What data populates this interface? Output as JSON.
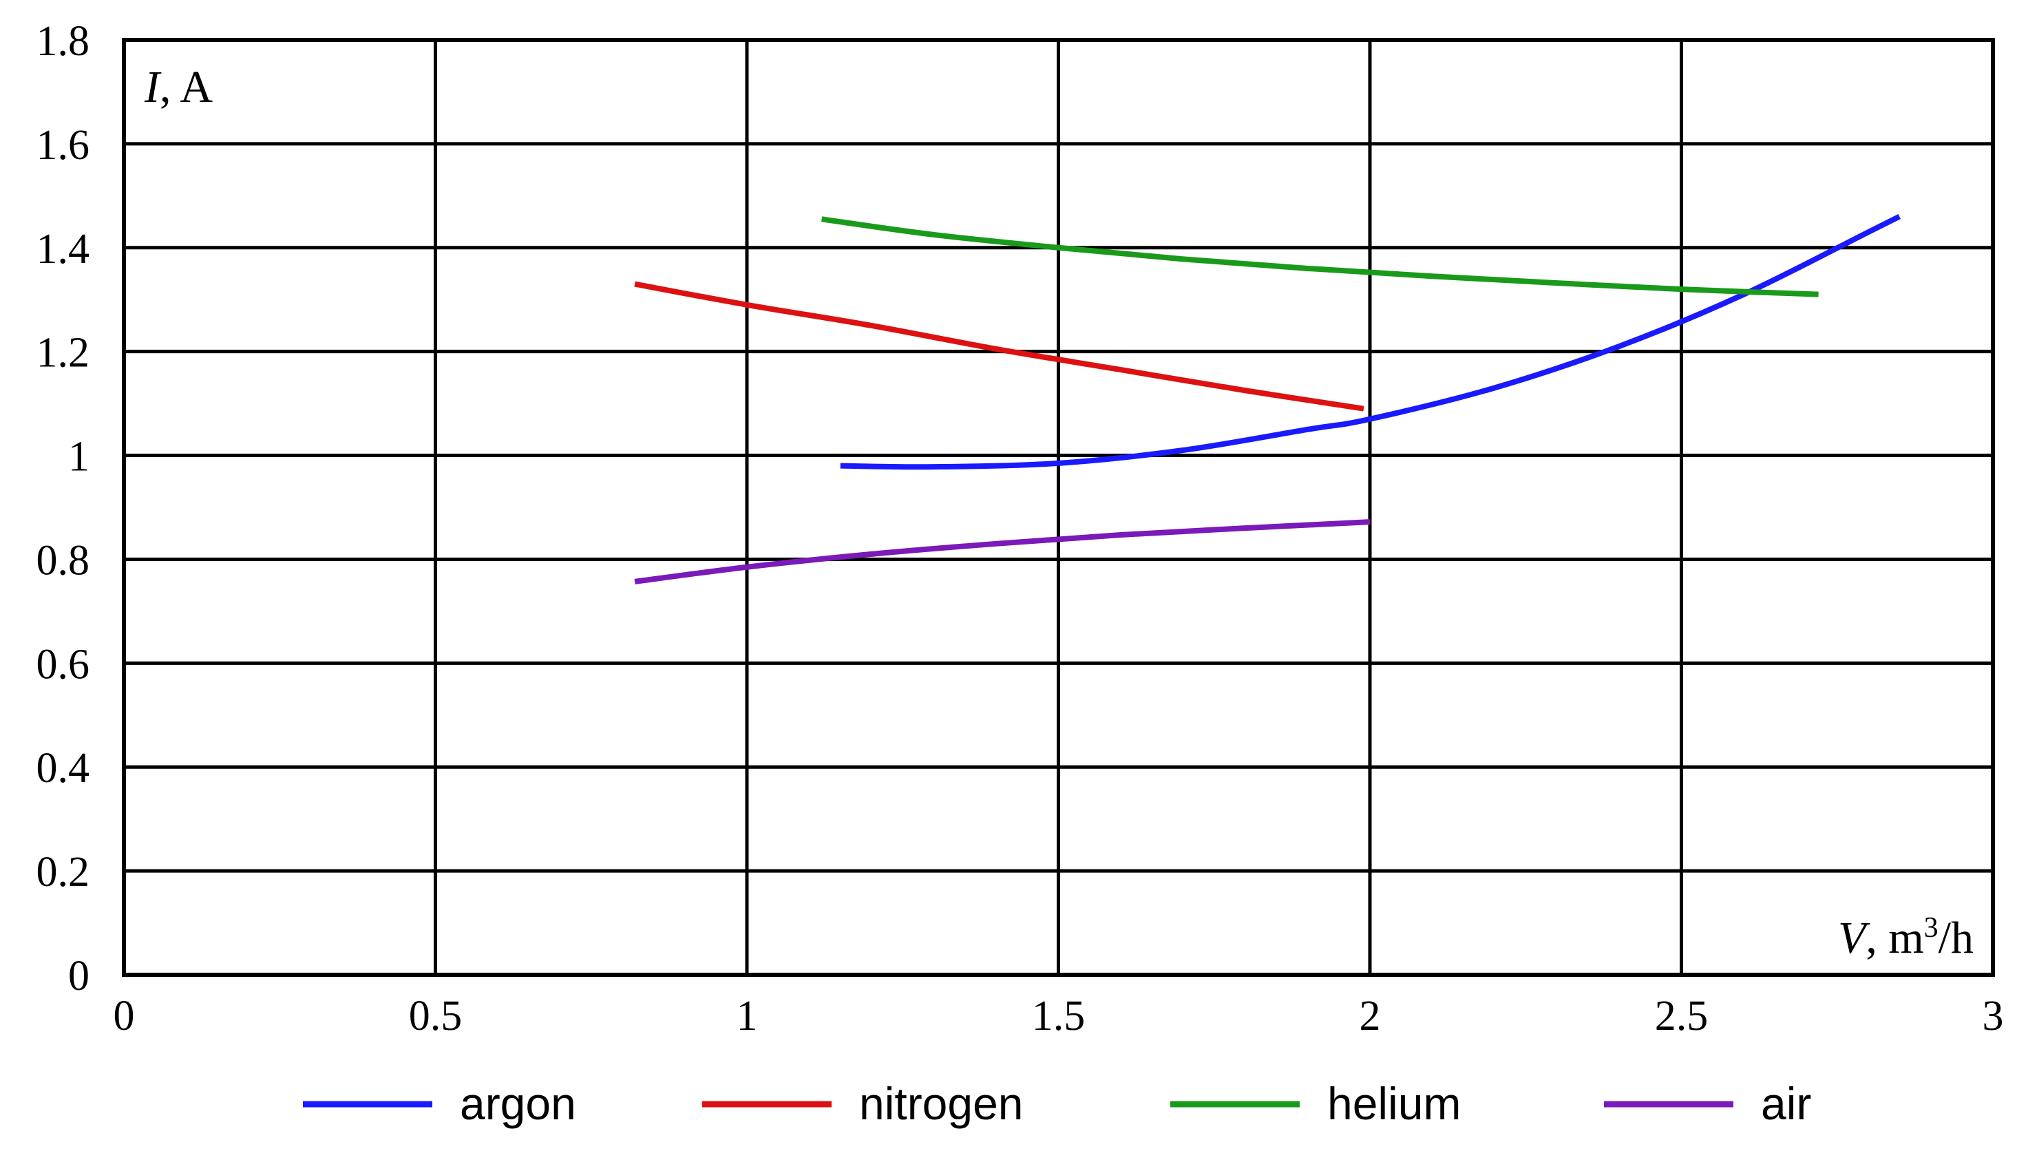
{
  "chart_data": {
    "type": "line",
    "title": "",
    "ylabel": {
      "var": "I",
      "rest": ", A"
    },
    "xlabel": {
      "var": "V",
      "rest1": ", m",
      "sup": "3",
      "rest2": "/h"
    },
    "xlim": [
      0,
      3
    ],
    "ylim": [
      0,
      1.8
    ],
    "xticks": [
      {
        "v": 0,
        "label": "0"
      },
      {
        "v": 0.5,
        "label": "0.5"
      },
      {
        "v": 1,
        "label": "1"
      },
      {
        "v": 1.5,
        "label": "1.5"
      },
      {
        "v": 2,
        "label": "2"
      },
      {
        "v": 2.5,
        "label": "2.5"
      },
      {
        "v": 3,
        "label": "3"
      }
    ],
    "yticks": [
      {
        "v": 0,
        "label": "0"
      },
      {
        "v": 0.2,
        "label": "0.2"
      },
      {
        "v": 0.4,
        "label": "0.4"
      },
      {
        "v": 0.6,
        "label": "0.6"
      },
      {
        "v": 0.8,
        "label": "0.8"
      },
      {
        "v": 1.0,
        "label": "1"
      },
      {
        "v": 1.2,
        "label": "1.2"
      },
      {
        "v": 1.4,
        "label": "1.4"
      },
      {
        "v": 1.6,
        "label": "1.6"
      },
      {
        "v": 1.8,
        "label": "1.8"
      }
    ],
    "grid": true,
    "legend_position": "bottom",
    "series": [
      {
        "name": "argon",
        "color": "#1a1aff",
        "x": [
          1.15,
          1.3,
          1.5,
          1.7,
          1.9,
          2.0,
          2.2,
          2.4,
          2.6,
          2.8,
          2.85
        ],
        "y": [
          0.98,
          0.978,
          0.985,
          1.01,
          1.05,
          1.07,
          1.13,
          1.21,
          1.31,
          1.43,
          1.46
        ]
      },
      {
        "name": "nitrogen",
        "color": "#dd1111",
        "x": [
          0.82,
          1.0,
          1.2,
          1.4,
          1.6,
          1.8,
          1.99
        ],
        "y": [
          1.33,
          1.29,
          1.25,
          1.205,
          1.165,
          1.125,
          1.09
        ]
      },
      {
        "name": "helium",
        "color": "#1a9a1a",
        "x": [
          1.12,
          1.3,
          1.5,
          1.7,
          1.9,
          2.1,
          2.3,
          2.5,
          2.72
        ],
        "y": [
          1.455,
          1.425,
          1.4,
          1.378,
          1.36,
          1.345,
          1.332,
          1.32,
          1.31
        ]
      },
      {
        "name": "air",
        "color": "#7a1ab8",
        "x": [
          0.82,
          1.0,
          1.2,
          1.4,
          1.6,
          1.8,
          2.0
        ],
        "y": [
          0.757,
          0.785,
          0.81,
          0.83,
          0.847,
          0.86,
          0.872
        ]
      }
    ]
  }
}
